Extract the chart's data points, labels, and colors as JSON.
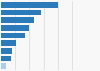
{
  "values": [
    100,
    70,
    58,
    50,
    43,
    26,
    20,
    18,
    8
  ],
  "bar_color": "#2b7bba",
  "bar_color_last": "#aecde8",
  "background_color": "#f8f8f8",
  "xlim": [
    0,
    130
  ],
  "figsize": [
    1.0,
    0.71
  ],
  "dpi": 100,
  "bar_height": 0.75,
  "grid_color": "#d0d0d0",
  "grid_values": [
    25,
    50,
    75,
    100,
    125
  ]
}
